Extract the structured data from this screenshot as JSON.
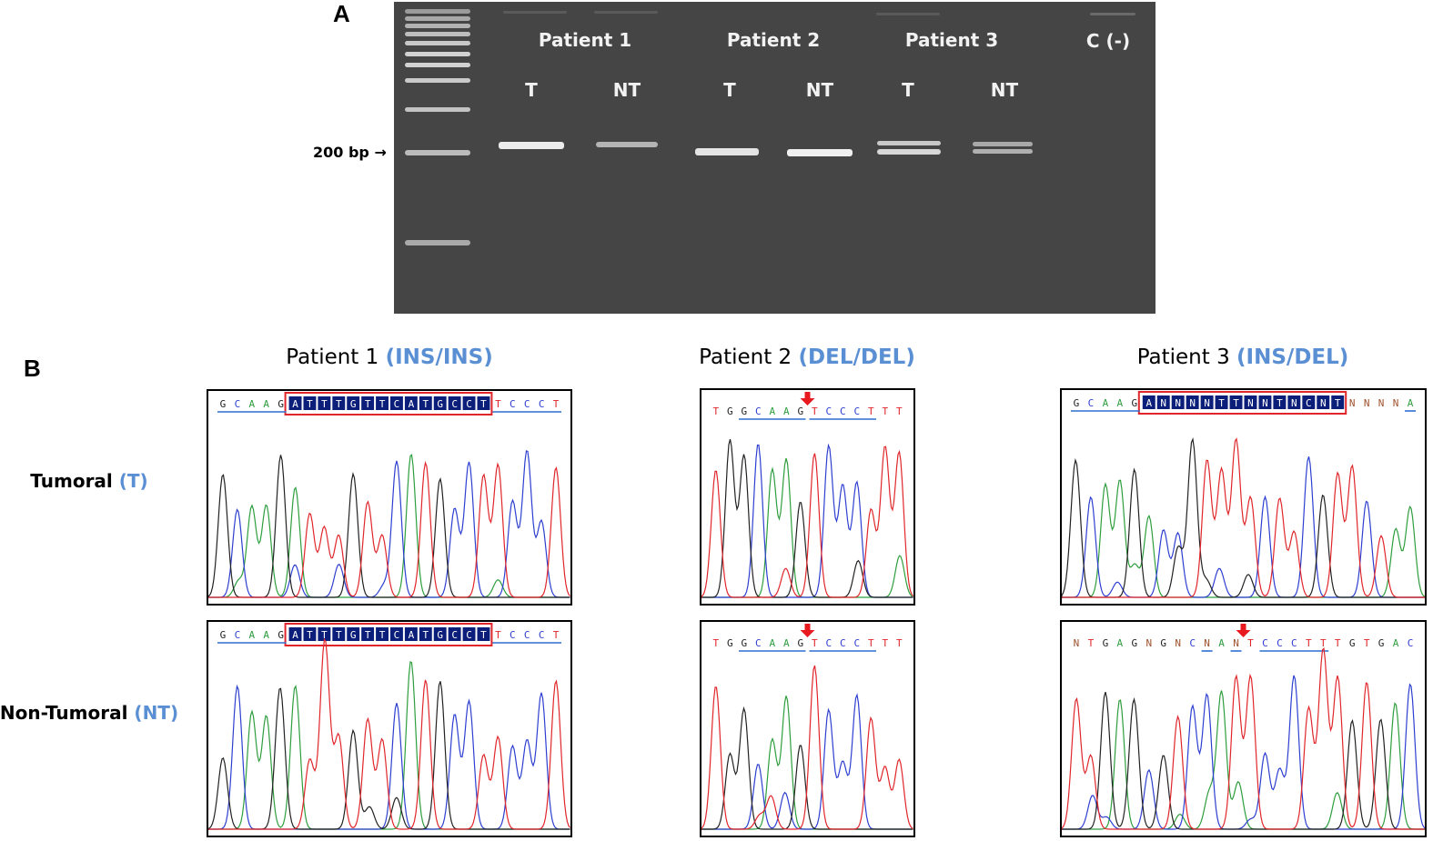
{
  "panel_a": {
    "letter": "A",
    "marker_label": "200 bp →",
    "patients": [
      "Patient 1",
      "Patient 2",
      "Patient 3"
    ],
    "control_label": "C (-)",
    "lanes": [
      "T",
      "NT",
      "T",
      "NT",
      "T",
      "NT"
    ]
  },
  "panel_b": {
    "letter": "B",
    "columns": [
      {
        "patient": "Patient 1 ",
        "genotype": "(INS/INS)"
      },
      {
        "patient": "Patient 2 ",
        "genotype": "(DEL/DEL)"
      },
      {
        "patient": "Patient 3 ",
        "genotype": "(INS/DEL)"
      }
    ],
    "rows": [
      {
        "label": "Tumoral ",
        "abbr": "(T)"
      },
      {
        "label": "Non-Tumoral ",
        "abbr": "(NT)"
      }
    ],
    "sequences": {
      "p1_t": {
        "plain_before": "GCAAG",
        "boxed": "ATTTGTTCATGCCT",
        "plain_after": "TCCCT"
      },
      "p1_nt": {
        "plain_before": "GCAAG",
        "boxed": "ATTTGTTCATGCCT",
        "plain_after": "TCCCT"
      },
      "p2_t": {
        "text": "TGGCAAGTCCCTTT"
      },
      "p2_nt": {
        "text": "TGGCAAGTCCCTTT"
      },
      "p3_t": {
        "plain_before": "GCAAG",
        "boxed": "ANNNNTTNNTNCNT",
        "plain_after": "NNNNA"
      },
      "p3_nt": {
        "text": "NTGAGNGNCNANTCCCTTTGTGAC"
      }
    },
    "colors": {
      "A": "#2e9e3e",
      "C": "#2d3fd0",
      "G": "#222222",
      "T": "#e0262b",
      "N": "#a0522d",
      "accent": "#5b8fd4",
      "box": "#e0262b"
    }
  }
}
